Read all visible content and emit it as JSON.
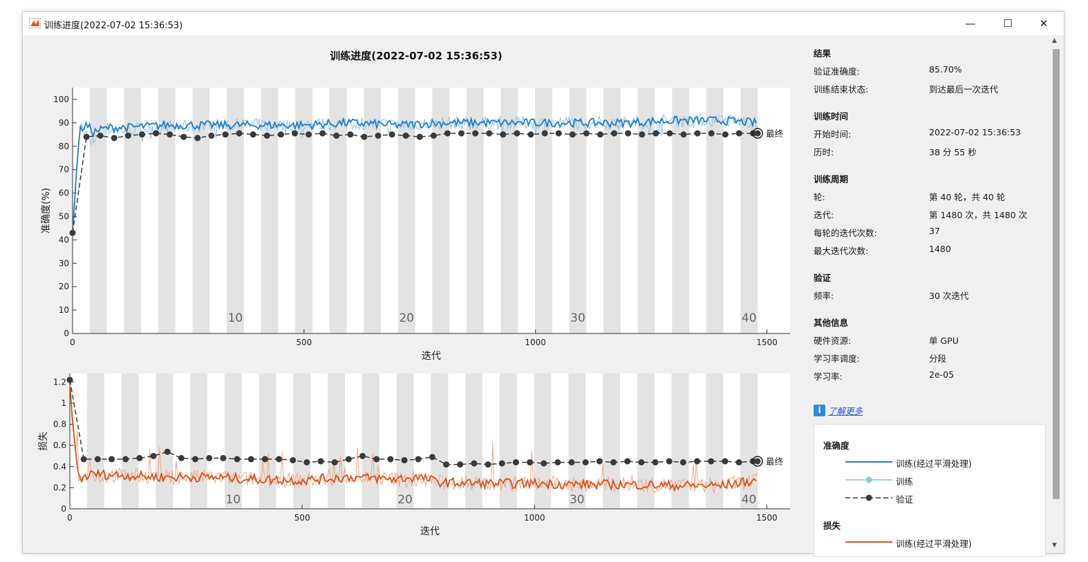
{
  "window": {
    "title": "训练进度(2022-07-02 15:36:53)",
    "minimize": "—",
    "maximize": "☐",
    "close": "✕"
  },
  "plot_title": "训练进度(2022-07-02 15:36:53)",
  "colors": {
    "train_acc_smooth": "#1f7ec9",
    "train_acc": "#8dc3ea",
    "train_loss_smooth": "#d95319",
    "train_loss": "#f2a685",
    "validation": "#3a3a3a",
    "epoch_band": "#e3e3e3"
  },
  "chart_data": [
    {
      "type": "line",
      "title": "训练进度(2022-07-02 15:36:53)",
      "xlabel": "迭代",
      "ylabel": "准确度(%)",
      "xlim": [
        0,
        1550
      ],
      "ylim": [
        0,
        105
      ],
      "xticks": [
        "0",
        "500",
        "1000",
        "1500"
      ],
      "yticks": [
        "0",
        "10",
        "20",
        "30",
        "40",
        "50",
        "60",
        "70",
        "80",
        "90",
        "100"
      ],
      "epoch_labels": [
        "10",
        "20",
        "30",
        "40"
      ],
      "final_label": "最终",
      "series": [
        {
          "name": "训练(经过平滑处理)",
          "style": "solid",
          "x": [
            0,
            15,
            30,
            45,
            60,
            80,
            120,
            200,
            300,
            400,
            500,
            600,
            700,
            800,
            900,
            1000,
            1100,
            1200,
            1300,
            1400,
            1480
          ],
          "values": [
            45,
            87,
            89,
            86,
            87,
            88,
            88,
            89,
            89,
            89,
            89,
            90,
            89,
            90,
            90,
            90,
            90,
            90,
            91,
            91,
            90
          ]
        },
        {
          "name": "训练",
          "style": "noisy",
          "x": [
            0,
            10,
            20,
            30,
            40,
            60,
            100,
            200,
            300,
            400,
            500,
            600,
            700,
            800,
            900,
            1000,
            1100,
            1200,
            1300,
            1400,
            1480
          ],
          "values": [
            43,
            75,
            90,
            85,
            80,
            88,
            87,
            88,
            89,
            89,
            89,
            90,
            89,
            90,
            90,
            90,
            90,
            90,
            91,
            91,
            90
          ]
        },
        {
          "name": "验证",
          "style": "dashed",
          "x": [
            0,
            30,
            60,
            90,
            120,
            150,
            180,
            210,
            240,
            270,
            300,
            330,
            360,
            390,
            420,
            450,
            480,
            510,
            540,
            570,
            600,
            630,
            660,
            690,
            720,
            750,
            780,
            810,
            840,
            870,
            900,
            930,
            960,
            990,
            1020,
            1050,
            1080,
            1110,
            1140,
            1170,
            1200,
            1230,
            1260,
            1290,
            1320,
            1350,
            1380,
            1410,
            1440,
            1470,
            1480
          ],
          "values": [
            43,
            84,
            84.5,
            83.5,
            84.5,
            85,
            85.5,
            85,
            84,
            83.5,
            84.5,
            85,
            85.5,
            85,
            84.5,
            85,
            85.5,
            85,
            85.5,
            84.5,
            85,
            84,
            84.5,
            85,
            84.5,
            84,
            84.5,
            85.5,
            85.5,
            85.5,
            85.5,
            85,
            85.5,
            85,
            85.5,
            85.5,
            85,
            85.5,
            85,
            85.5,
            85.5,
            85,
            85.5,
            85.5,
            85,
            85.5,
            85.5,
            85,
            85.5,
            85.5,
            85.5
          ]
        }
      ]
    },
    {
      "type": "line",
      "xlabel": "迭代",
      "ylabel": "损失",
      "xlim": [
        0,
        1550
      ],
      "ylim": [
        0,
        1.28
      ],
      "xticks": [
        "0",
        "500",
        "1000",
        "1500"
      ],
      "yticks": [
        "0",
        "0.2",
        "0.4",
        "0.6",
        "0.8",
        "1",
        "1.2"
      ],
      "epoch_labels": [
        "10",
        "20",
        "30",
        "40"
      ],
      "final_label": "最终",
      "series": [
        {
          "name": "训练(经过平滑处理)",
          "style": "solid",
          "x": [
            0,
            10,
            20,
            30,
            50,
            100,
            200,
            300,
            400,
            500,
            600,
            700,
            750,
            800,
            900,
            1000,
            1100,
            1200,
            1300,
            1400,
            1480
          ],
          "values": [
            1.2,
            0.6,
            0.28,
            0.3,
            0.33,
            0.32,
            0.3,
            0.3,
            0.28,
            0.27,
            0.3,
            0.28,
            0.3,
            0.25,
            0.24,
            0.24,
            0.23,
            0.23,
            0.22,
            0.22,
            0.27
          ]
        },
        {
          "name": "训练",
          "style": "noisy",
          "x": [
            0,
            10,
            20,
            40,
            60,
            100,
            200,
            300,
            400,
            500,
            600,
            700,
            800,
            900,
            1000,
            1100,
            1200,
            1300,
            1400,
            1480
          ],
          "values": [
            1.2,
            0.7,
            0.25,
            0.35,
            0.3,
            0.32,
            0.3,
            0.3,
            0.28,
            0.27,
            0.3,
            0.28,
            0.25,
            0.24,
            0.24,
            0.23,
            0.23,
            0.22,
            0.22,
            0.27
          ]
        },
        {
          "name": "验证",
          "style": "dashed",
          "x": [
            0,
            30,
            60,
            90,
            120,
            150,
            180,
            210,
            240,
            270,
            300,
            330,
            360,
            390,
            420,
            450,
            480,
            510,
            540,
            570,
            600,
            630,
            660,
            690,
            720,
            750,
            780,
            810,
            840,
            870,
            900,
            930,
            960,
            990,
            1020,
            1050,
            1080,
            1110,
            1140,
            1170,
            1200,
            1230,
            1260,
            1290,
            1320,
            1350,
            1380,
            1410,
            1440,
            1470,
            1480
          ],
          "values": [
            1.22,
            0.47,
            0.47,
            0.47,
            0.47,
            0.48,
            0.5,
            0.54,
            0.48,
            0.47,
            0.48,
            0.48,
            0.47,
            0.47,
            0.47,
            0.47,
            0.46,
            0.44,
            0.45,
            0.44,
            0.47,
            0.5,
            0.47,
            0.47,
            0.46,
            0.47,
            0.49,
            0.42,
            0.42,
            0.43,
            0.42,
            0.43,
            0.44,
            0.44,
            0.43,
            0.44,
            0.44,
            0.44,
            0.45,
            0.44,
            0.45,
            0.44,
            0.44,
            0.45,
            0.44,
            0.45,
            0.45,
            0.45,
            0.44,
            0.45,
            0.45
          ]
        }
      ]
    }
  ],
  "info": {
    "sections": [
      {
        "header": "结果",
        "rows": [
          {
            "label": "验证准确度:",
            "value": "85.70%"
          },
          {
            "label": "训练结束状态:",
            "value": "到达最后一次迭代"
          }
        ]
      },
      {
        "header": "训练时间",
        "rows": [
          {
            "label": "开始时间:",
            "value": "2022-07-02 15:36:53"
          },
          {
            "label": "历时:",
            "value": "38 分 55 秒"
          }
        ]
      },
      {
        "header": "训练周期",
        "rows": [
          {
            "label": "轮:",
            "value": "第 40 轮，共 40 轮"
          },
          {
            "label": "迭代:",
            "value": "第 1480 次，共 1480 次"
          },
          {
            "label": "每轮的迭代次数:",
            "value": "37"
          },
          {
            "label": "最大迭代次数:",
            "value": "1480"
          }
        ]
      },
      {
        "header": "验证",
        "rows": [
          {
            "label": "频率:",
            "value": "30 次迭代"
          }
        ]
      },
      {
        "header": "其他信息",
        "rows": [
          {
            "label": "硬件资源:",
            "value": "单 GPU"
          },
          {
            "label": "学习率调度:",
            "value": "分段"
          },
          {
            "label": "学习率:",
            "value": "2e-05"
          }
        ]
      }
    ],
    "learn_more": "了解更多",
    "info_icon": "i"
  },
  "legend": {
    "accuracy_header": "准确度",
    "accuracy_items": [
      {
        "label": "训练(经过平滑处理)",
        "style": "solid"
      },
      {
        "label": "训练",
        "style": "light"
      },
      {
        "label": "验证",
        "style": "dashed"
      }
    ],
    "loss_header": "损失",
    "loss_items": [
      {
        "label": "训练(经过平滑处理)",
        "style": "solid"
      }
    ]
  }
}
